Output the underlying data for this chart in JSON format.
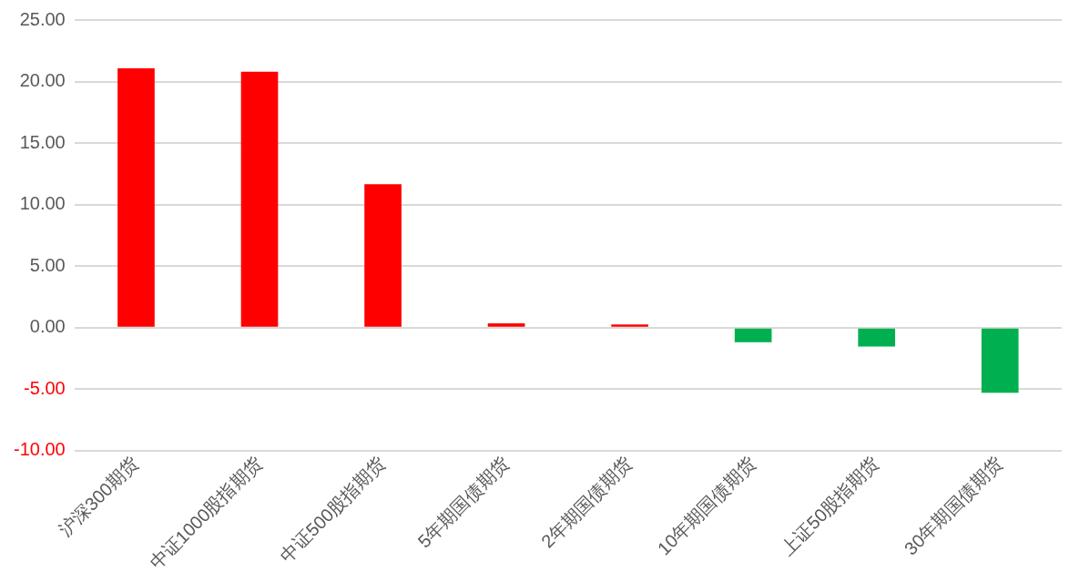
{
  "chart_data": {
    "type": "bar",
    "categories": [
      "沪深300期货",
      "中证1000股指期货",
      "中证500股指期货",
      "5年期国债期货",
      "2年期国债期货",
      "10年期国债期货",
      "上证50股指期货",
      "30年期国债期货"
    ],
    "values": [
      21.07,
      20.8,
      11.65,
      0.35,
      0.25,
      -1.2,
      -1.55,
      -5.3
    ],
    "colors": [
      "#ff0000",
      "#ff0000",
      "#ff0000",
      "#ff0000",
      "#ff0000",
      "#00b050",
      "#00b050",
      "#00b050"
    ],
    "ylim": [
      -10,
      25
    ],
    "yticks": [
      {
        "value": -10,
        "label": "-10.00"
      },
      {
        "value": -5,
        "label": "-5.00"
      },
      {
        "value": 0,
        "label": "0.00"
      },
      {
        "value": 5,
        "label": "5.00"
      },
      {
        "value": 10,
        "label": "10.00"
      },
      {
        "value": 15,
        "label": "15.00"
      },
      {
        "value": 20,
        "label": "20.00"
      },
      {
        "value": 25,
        "label": "25.00"
      }
    ],
    "grid": "y",
    "legend": false
  }
}
